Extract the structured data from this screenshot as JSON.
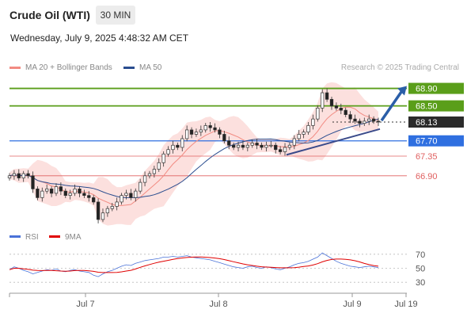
{
  "header": {
    "title": "Crude Oil (WTI)",
    "timeframe": "30 MIN",
    "datetime": "Wednesday, July 9, 2025 4:48:32 AM CET"
  },
  "legend": {
    "ma20_label": "MA 20 + Bollinger Bands",
    "ma20_color": "#f28b82",
    "ma50_label": "MA 50",
    "ma50_color": "#2a4d8f",
    "credit": "Research © 2025 Trading Central"
  },
  "chart_data": [
    {
      "type": "line",
      "subtype": "candlestick",
      "title": "Crude Oil (WTI)",
      "ylim": [
        65.7,
        69.2
      ],
      "x_ticks": [
        "Jul 7",
        "Jul 8",
        "Jul 9",
        "Jul 19"
      ],
      "current_price": 68.13,
      "levels": [
        {
          "value": 68.9,
          "label": "68.90",
          "style": "resistance",
          "color": "#5a9e1a"
        },
        {
          "value": 68.5,
          "label": "68.50",
          "style": "resistance",
          "color": "#5a9e1a"
        },
        {
          "value": 68.13,
          "label": "68.13",
          "style": "last",
          "color": "#333333"
        },
        {
          "value": 67.7,
          "label": "67.70",
          "style": "pivot",
          "color": "#2f6fe0"
        },
        {
          "value": 67.35,
          "label": "67.35",
          "style": "support",
          "color": "#e06060"
        },
        {
          "value": 66.9,
          "label": "66.90",
          "style": "support",
          "color": "#e06060"
        }
      ],
      "close_path": [
        66.9,
        66.95,
        66.85,
        66.95,
        66.9,
        66.6,
        66.4,
        66.55,
        66.6,
        66.5,
        66.65,
        66.55,
        66.45,
        66.5,
        66.6,
        66.5,
        66.45,
        66.4,
        66.3,
        65.9,
        66.05,
        66.15,
        66.2,
        66.3,
        66.45,
        66.5,
        66.4,
        66.55,
        66.75,
        66.9,
        66.95,
        67.05,
        67.2,
        67.4,
        67.5,
        67.6,
        67.55,
        67.75,
        67.95,
        67.85,
        67.9,
        67.95,
        68.05,
        68.0,
        67.95,
        67.85,
        67.7,
        67.6,
        67.55,
        67.6,
        67.55,
        67.6,
        67.65,
        67.6,
        67.55,
        67.6,
        67.6,
        67.5,
        67.45,
        67.55,
        67.6,
        67.75,
        67.85,
        67.9,
        68.05,
        68.2,
        68.45,
        68.8,
        68.65,
        68.5,
        68.45,
        68.4,
        68.3,
        68.2,
        68.15,
        68.1,
        68.15,
        68.2,
        68.15,
        68.13
      ],
      "series": [
        {
          "name": "MA 20 + Bollinger Bands",
          "color": "#f28b82"
        },
        {
          "name": "MA 50",
          "color": "#2a4d8f"
        }
      ],
      "forecast_arrow": {
        "from": 68.2,
        "to": 68.9
      }
    },
    {
      "type": "line",
      "title": "RSI",
      "ylim": [
        20,
        80
      ],
      "y_ticks": [
        70,
        50,
        30
      ],
      "series": [
        {
          "name": "RSI",
          "color": "#4a72d8"
        },
        {
          "name": "9MA",
          "color": "#e00000"
        }
      ],
      "rsi_values": [
        48,
        52,
        50,
        47,
        45,
        42,
        44,
        46,
        48,
        47,
        49,
        46,
        45,
        47,
        48,
        46,
        45,
        44,
        40,
        38,
        42,
        45,
        47,
        50,
        53,
        55,
        54,
        57,
        59,
        61,
        62,
        63,
        64,
        66,
        66,
        67,
        66,
        67,
        68,
        66,
        65,
        64,
        63,
        62,
        60,
        58,
        56,
        54,
        52,
        51,
        50,
        52,
        53,
        51,
        50,
        52,
        51,
        49,
        48,
        50,
        52,
        55,
        57,
        58,
        60,
        63,
        66,
        72,
        68,
        64,
        60,
        57,
        55,
        53,
        52,
        51,
        52,
        53,
        52,
        51
      ]
    }
  ]
}
